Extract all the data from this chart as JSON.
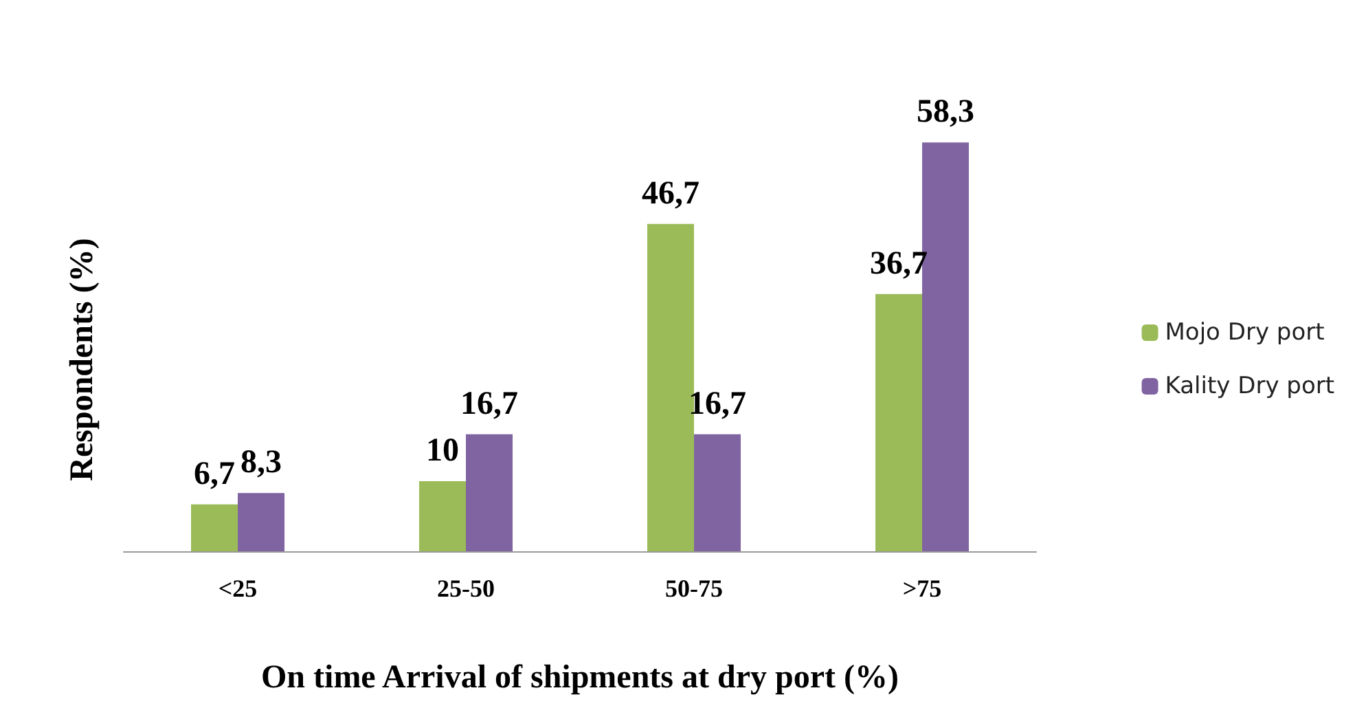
{
  "chart_data": {
    "type": "bar",
    "xlabel": "On time Arrival of shipments at dry port (%)",
    "ylabel": "Respondents (%)",
    "categories": [
      "<25",
      "25-50",
      "50-75",
      ">75"
    ],
    "series": [
      {
        "name": "Mojo Dry port",
        "color": "#9bbb59",
        "values": [
          6.7,
          10,
          46.7,
          36.7
        ],
        "value_labels": [
          "6,7",
          "10",
          "46,7",
          "36,7"
        ]
      },
      {
        "name": "Kality Dry port",
        "color": "#8064a2",
        "values": [
          8.3,
          16.7,
          16.7,
          58.3
        ],
        "value_labels": [
          "8,3",
          "16,7",
          "16,7",
          "58,3"
        ]
      }
    ],
    "legend": "right",
    "grid": false
  }
}
